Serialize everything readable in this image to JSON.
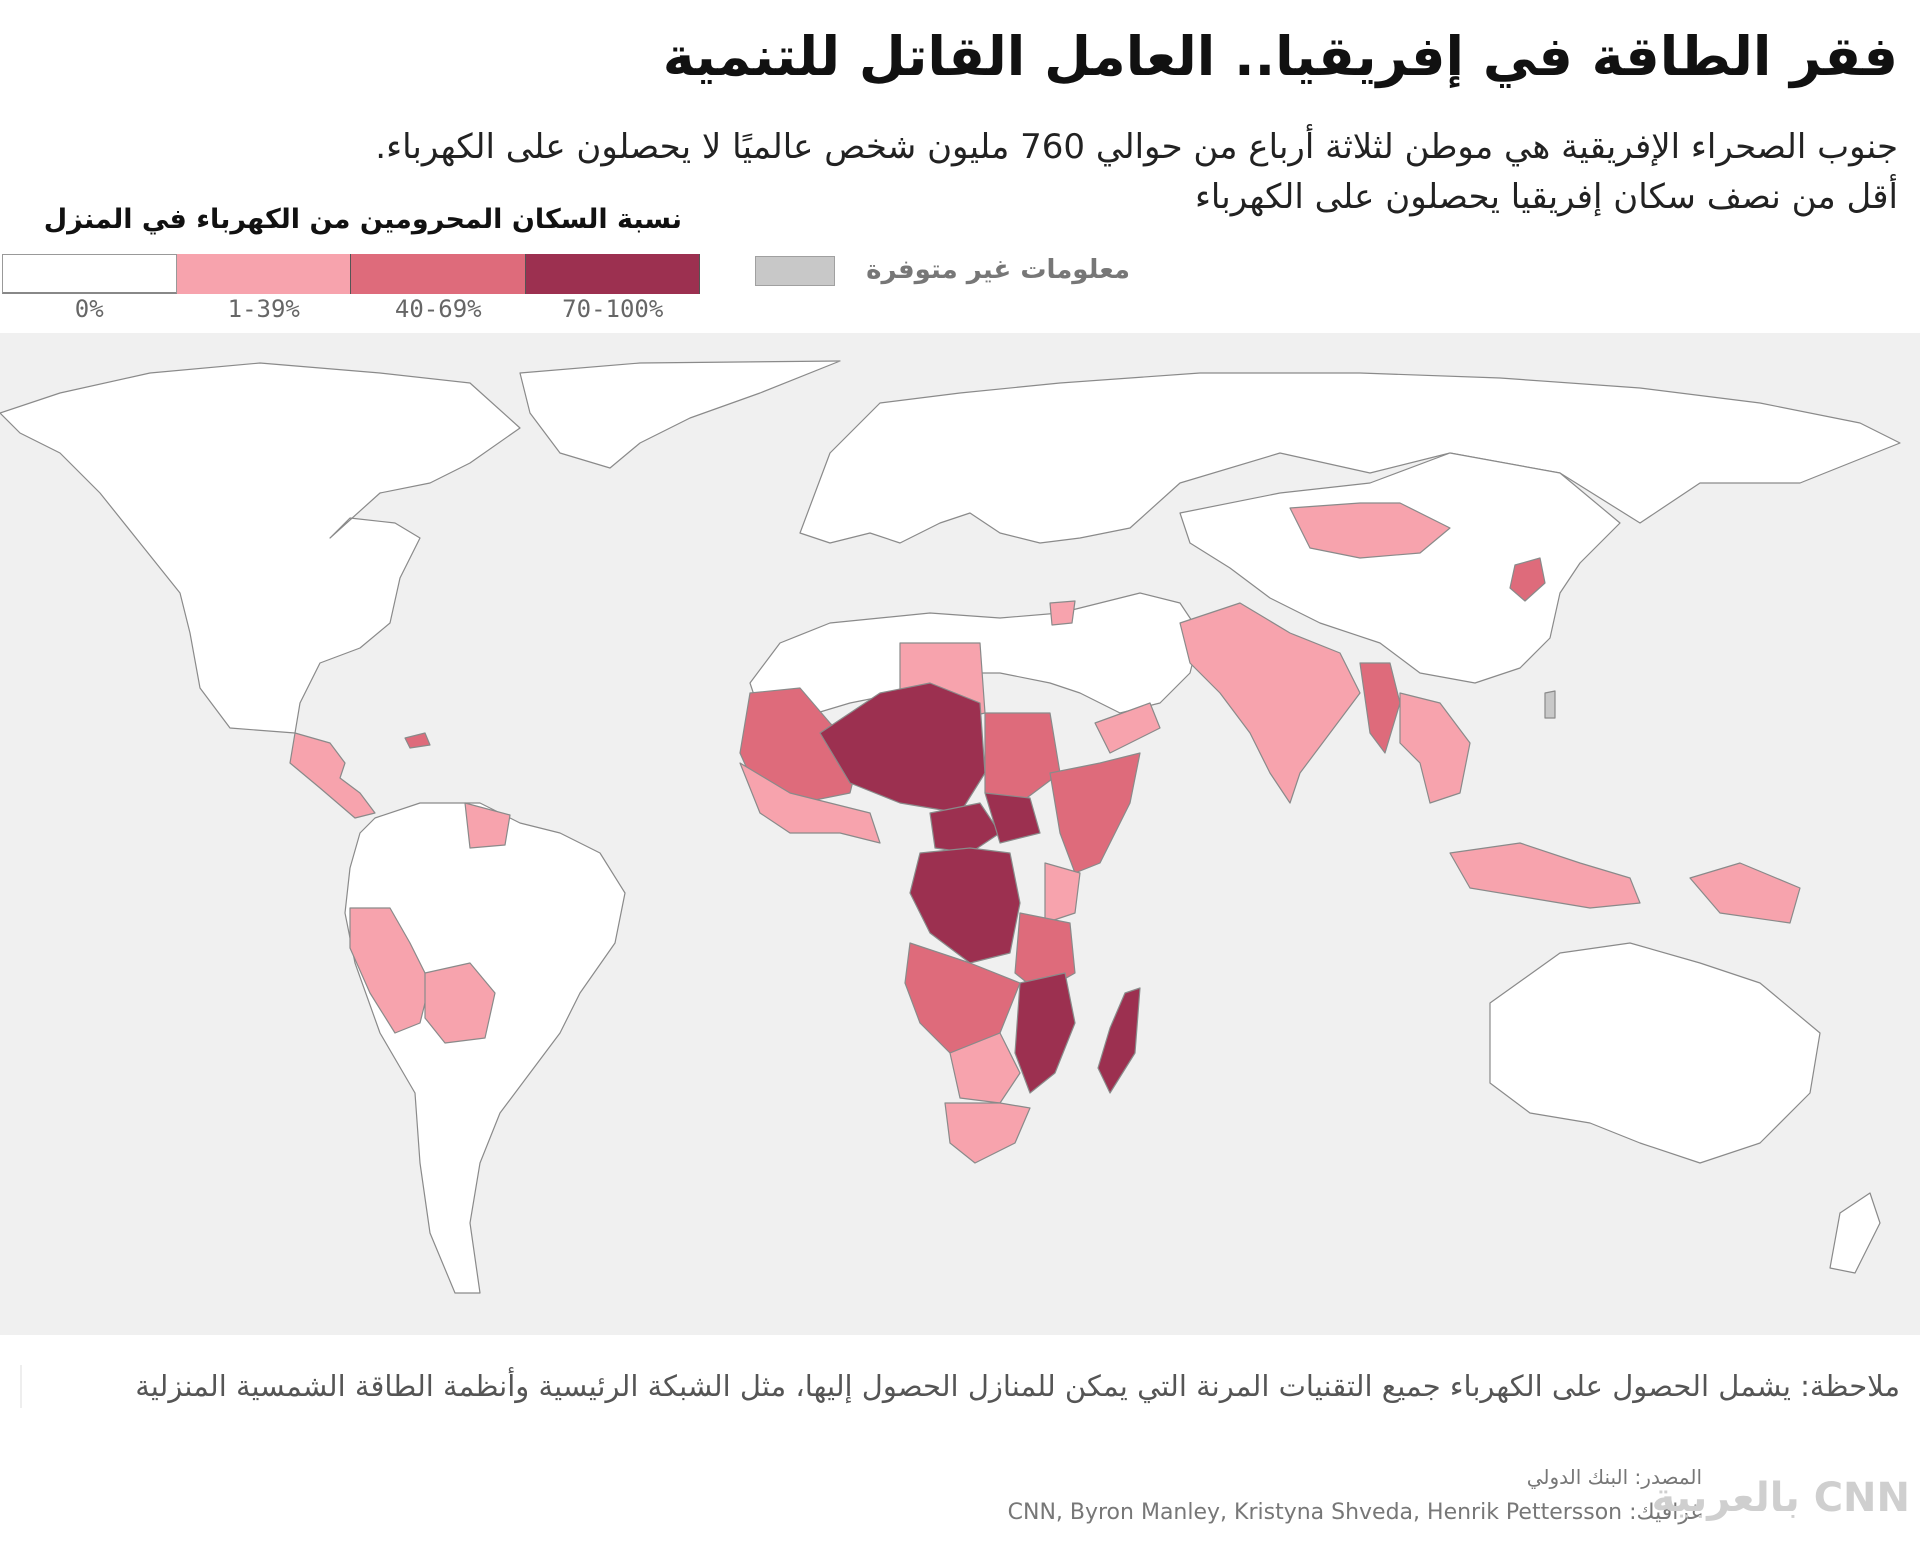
{
  "header": {
    "title": "فقر الطاقة في إفريقيا.. العامل القاتل للتنمية",
    "subtitle_line1": "جنوب الصحراء الإفريقية هي موطن لثلاثة أرباع من حوالي 760 مليون شخص عالميًا لا يحصلون على الكهرباء.",
    "subtitle_line2": "أقل من نصف سكان إفريقيا يحصلون على الكهرباء"
  },
  "legend": {
    "title": "نسبة السكان المحرومين من الكهرباء في المنزل",
    "bins": [
      {
        "label": "0%",
        "color": "#ffffff"
      },
      {
        "label": "1-39%",
        "color": "#f7a3ad"
      },
      {
        "label": "40-69%",
        "color": "#de6b7b"
      },
      {
        "label": "70-100%",
        "color": "#9c3050"
      }
    ],
    "no_data_label": "معلومات غير متوفرة",
    "no_data_color": "#c8c8c8"
  },
  "map": {
    "ocean_color": "#f0f0f0",
    "land_color": "#ffffff",
    "border_color": "#8a8a8a",
    "regions": [
      {
        "name": "north-america",
        "bin": "0%"
      },
      {
        "name": "central-america",
        "bin": "1-39%"
      },
      {
        "name": "haiti",
        "bin": "40-69%"
      },
      {
        "name": "south-america",
        "bin": "0%"
      },
      {
        "name": "guyana-suriname",
        "bin": "1-39%"
      },
      {
        "name": "peru",
        "bin": "1-39%"
      },
      {
        "name": "bolivia",
        "bin": "1-39%"
      },
      {
        "name": "europe-russia",
        "bin": "0%"
      },
      {
        "name": "north-africa-middle-east",
        "bin": "0%"
      },
      {
        "name": "libya",
        "bin": "1-39%"
      },
      {
        "name": "yemen",
        "bin": "1-39%"
      },
      {
        "name": "syria",
        "bin": "1-39%"
      },
      {
        "name": "mauritania-mali-sahel",
        "bin": "40-69%"
      },
      {
        "name": "niger-chad",
        "bin": "70-100%"
      },
      {
        "name": "sudan",
        "bin": "40-69%"
      },
      {
        "name": "ethiopia-horn",
        "bin": "40-69%"
      },
      {
        "name": "west-africa-coast",
        "bin": "1-39%"
      },
      {
        "name": "central-african-republic",
        "bin": "70-100%"
      },
      {
        "name": "south-sudan",
        "bin": "70-100%"
      },
      {
        "name": "dr-congo",
        "bin": "70-100%"
      },
      {
        "name": "kenya",
        "bin": "1-39%"
      },
      {
        "name": "east-africa",
        "bin": "40-69%"
      },
      {
        "name": "angola-zambia",
        "bin": "40-69%"
      },
      {
        "name": "malawi-mozambique",
        "bin": "70-100%"
      },
      {
        "name": "madagascar",
        "bin": "70-100%"
      },
      {
        "name": "southern-africa",
        "bin": "1-39%"
      },
      {
        "name": "south-africa",
        "bin": "1-39%"
      },
      {
        "name": "mongolia",
        "bin": "1-39%"
      },
      {
        "name": "north-korea",
        "bin": "40-69%"
      },
      {
        "name": "south-asia",
        "bin": "1-39%"
      },
      {
        "name": "myanmar",
        "bin": "40-69%"
      },
      {
        "name": "southeast-asia",
        "bin": "1-39%"
      },
      {
        "name": "indonesia",
        "bin": "1-39%"
      },
      {
        "name": "papua-new-guinea",
        "bin": "1-39%"
      },
      {
        "name": "china",
        "bin": "0%"
      },
      {
        "name": "australia",
        "bin": "0%"
      },
      {
        "name": "taiwan",
        "bin": "no-data"
      }
    ]
  },
  "footer": {
    "note": "ملاحظة: يشمل الحصول على الكهرباء جميع التقنيات المرنة التي يمكن للمنازل الحصول إليها، مثل الشبكة الرئيسية وأنظمة الطاقة الشمسية المنزلية",
    "source": "المصدر: البنك الدولي",
    "graphic_label": "غرافيك:",
    "graphic_credit": "CNN, Byron Manley, Kristyna Shveda, Henrik Pettersson",
    "logo_text": "CNN بالعربية"
  }
}
